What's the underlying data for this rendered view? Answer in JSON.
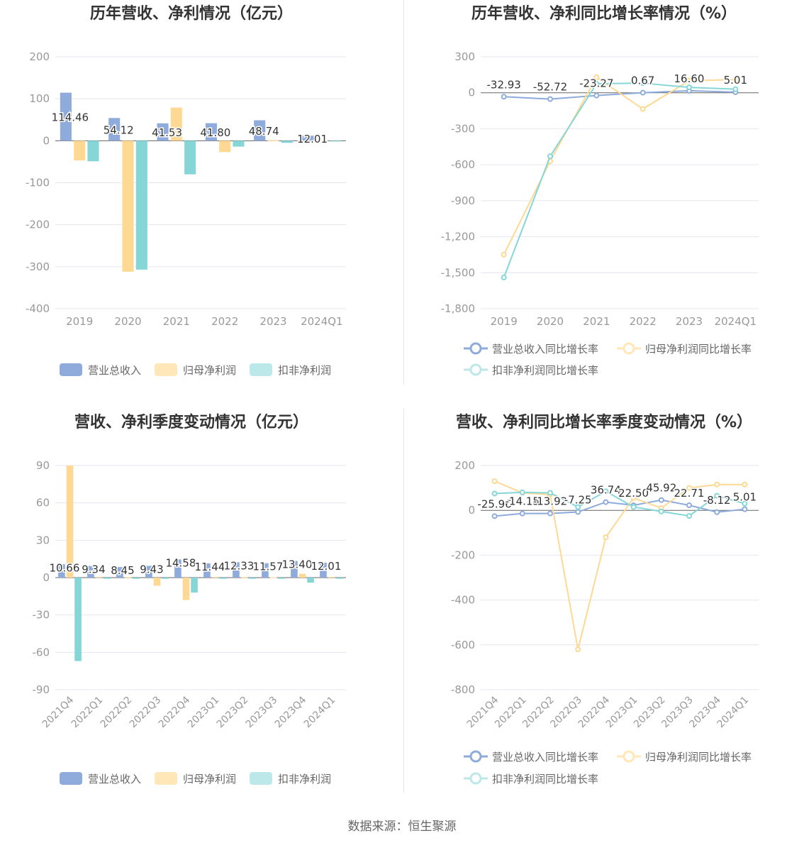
{
  "source_label": "数据来源：恒生聚源",
  "colors": {
    "revenue": "#8eabdb",
    "net_profit": "#ffd993",
    "deducted_profit": "#86d6d8",
    "revenue_light": "#8eabdb",
    "net_profit_light": "#ffe7b8",
    "deducted_profit_light": "#bde8ea",
    "grid": "#e4e6f0",
    "axis_text": "#999999",
    "title": "#333333"
  },
  "chart_data": [
    {
      "id": "annual-values",
      "type": "bar",
      "title": "历年营收、净利情况（亿元）",
      "categories": [
        "2019",
        "2020",
        "2021",
        "2022",
        "2023",
        "2024Q1"
      ],
      "ylim": [
        -400,
        200
      ],
      "yticks": [
        200,
        100,
        0,
        -100,
        -200,
        -300,
        -400
      ],
      "ytick_labels": [
        "200",
        "100",
        "0",
        "-100",
        "-200",
        "-300",
        "-400"
      ],
      "grid": true,
      "legend_position": "bottom",
      "series": [
        {
          "name": "营业总收入",
          "values": [
            114.46,
            54.12,
            41.53,
            41.8,
            48.74,
            12.01
          ],
          "labels": [
            "114.46",
            "54.12",
            "41.53",
            "41.80",
            "48.74",
            "12.01"
          ]
        },
        {
          "name": "归母净利润",
          "values": [
            -47,
            -312,
            79,
            -27,
            0.5,
            0.5
          ]
        },
        {
          "name": "扣非净利润",
          "values": [
            -49,
            -307,
            -80,
            -14,
            -5,
            -1
          ]
        }
      ]
    },
    {
      "id": "annual-growth",
      "type": "line",
      "title": "历年营收、净利同比增长率情况（%）",
      "categories": [
        "2019",
        "2020",
        "2021",
        "2022",
        "2023",
        "2024Q1"
      ],
      "ylim": [
        -1800,
        300
      ],
      "yticks": [
        300,
        0,
        -300,
        -600,
        -900,
        -1200,
        -1500,
        -1800
      ],
      "ytick_labels": [
        "300",
        "0",
        "-300",
        "-600",
        "-900",
        "-1,200",
        "-1,500",
        "-1,800"
      ],
      "grid": true,
      "legend_position": "bottom",
      "series": [
        {
          "name": "营业总收入同比增长率",
          "values": [
            -32.93,
            -52.72,
            -23.27,
            0.67,
            16.6,
            5.01
          ],
          "labels": [
            "-32.93",
            "-52.72",
            "-23.27",
            "0.67",
            "16.60",
            "5.01"
          ]
        },
        {
          "name": "归母净利润同比增长率",
          "values": [
            -1350,
            -570,
            130,
            -135,
            100,
            110
          ]
        },
        {
          "name": "扣非净利润同比增长率",
          "values": [
            -1540,
            -530,
            75,
            80,
            45,
            30
          ]
        }
      ]
    },
    {
      "id": "quarterly-values",
      "type": "bar",
      "title": "营收、净利季度变动情况（亿元）",
      "categories": [
        "2021Q4",
        "2022Q1",
        "2022Q2",
        "2022Q3",
        "2022Q4",
        "2023Q1",
        "2023Q2",
        "2023Q3",
        "2023Q4",
        "2024Q1"
      ],
      "ylim": [
        -90,
        90
      ],
      "yticks": [
        90,
        60,
        30,
        0,
        -30,
        -60,
        -90
      ],
      "ytick_labels": [
        "90",
        "60",
        "30",
        "0",
        "-30",
        "-60",
        "-90"
      ],
      "grid": true,
      "legend_position": "bottom",
      "series": [
        {
          "name": "营业总收入",
          "values": [
            10.66,
            9.34,
            8.45,
            9.43,
            14.58,
            11.44,
            12.33,
            11.57,
            13.4,
            12.01
          ],
          "labels": [
            "10.66",
            "9.34",
            "8.45",
            "9.43",
            "14.58",
            "11.44",
            "12.33",
            "11.57",
            "13.40",
            "12.01"
          ]
        },
        {
          "name": "归母净利润",
          "values": [
            90,
            0.5,
            0.4,
            -6.5,
            -18,
            0.5,
            0.4,
            0.3,
            3,
            0.5
          ]
        },
        {
          "name": "扣非净利润",
          "values": [
            -67,
            -1,
            -1,
            -1,
            -12,
            -1,
            -1,
            -1,
            -4,
            -1
          ]
        }
      ]
    },
    {
      "id": "quarterly-growth",
      "type": "line",
      "title": "营收、净利同比增长率季度变动情况（%）",
      "categories": [
        "2021Q4",
        "2022Q1",
        "2022Q2",
        "2022Q3",
        "2022Q4",
        "2023Q1",
        "2023Q2",
        "2023Q3",
        "2023Q4",
        "2024Q1"
      ],
      "ylim": [
        -800,
        200
      ],
      "yticks": [
        200,
        0,
        -200,
        -400,
        -600,
        -800
      ],
      "ytick_labels": [
        "200",
        "0",
        "-200",
        "-400",
        "-600",
        "-800"
      ],
      "grid": true,
      "legend_position": "bottom",
      "series": [
        {
          "name": "营业总收入同比增长率",
          "values": [
            -25.96,
            -14.15,
            -13.92,
            -7.25,
            36.74,
            22.5,
            45.92,
            22.71,
            -8.12,
            5.01
          ],
          "labels": [
            "-25.96",
            "-14.15",
            "-13.92",
            "-7.25",
            "36.74",
            "22.50",
            "45.92",
            "22.71",
            "-8.12",
            "5.01"
          ]
        },
        {
          "name": "归母净利润同比增长率",
          "values": [
            130,
            78,
            70,
            -620,
            -120,
            55,
            10,
            100,
            115,
            115
          ]
        },
        {
          "name": "扣非净利润同比增长率",
          "values": [
            75,
            80,
            78,
            15,
            85,
            15,
            -5,
            -25,
            65,
            30
          ]
        }
      ]
    }
  ]
}
